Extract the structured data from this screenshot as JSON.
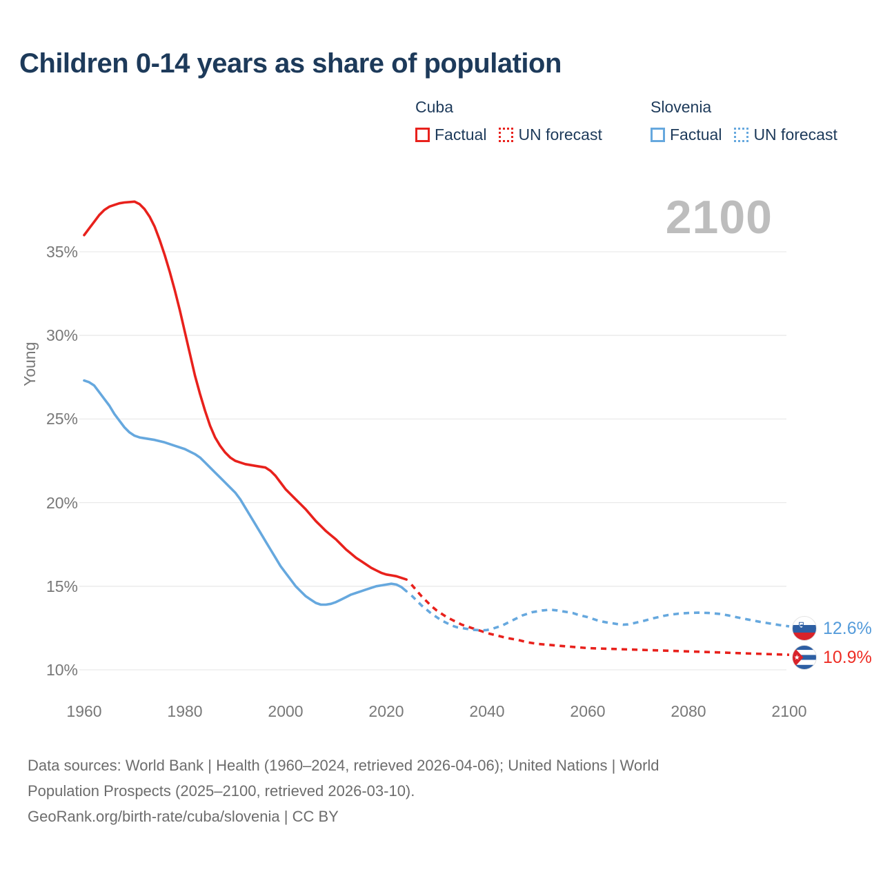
{
  "title": "Children 0-14 years as share of population",
  "colors": {
    "cuba": "#e8211c",
    "slovenia": "#66a8de",
    "cuba_label": "#ee2d24",
    "slovenia_label": "#549bda",
    "gridline": "#e9e9e9",
    "axis_text": "#787878",
    "watermark": "#bdbdbd",
    "title_text": "#1d3a5a"
  },
  "legend": {
    "groups": [
      {
        "country": "Cuba",
        "color": "#e8211c",
        "items": [
          {
            "label": "Factual",
            "style": "solid"
          },
          {
            "label": "UN forecast",
            "style": "dotted"
          }
        ]
      },
      {
        "country": "Slovenia",
        "color": "#66a8de",
        "items": [
          {
            "label": "Factual",
            "style": "solid"
          },
          {
            "label": "UN forecast",
            "style": "dotted"
          }
        ]
      }
    ]
  },
  "watermark": "2100",
  "end_labels": [
    {
      "country": "Slovenia",
      "value": "12.6%",
      "color": "#549bda"
    },
    {
      "country": "Cuba",
      "value": "10.9%",
      "color": "#ee2d24"
    }
  ],
  "footer": {
    "lines": [
      "Data sources: World Bank | Health (1960–2024, retrieved 2026-04-06); United Nations | World",
      "Population Prospects (2025–2100, retrieved 2026-03-10).",
      "GeoRank.org/birth-rate/cuba/slovenia | CC BY"
    ]
  },
  "chart_data": {
    "type": "line",
    "title": "Children 0-14 years as share of population",
    "xlabel": "",
    "ylabel": "Young",
    "xlim": [
      1960,
      2100
    ],
    "ylim": [
      10,
      38.5
    ],
    "grid": "horizontal-only",
    "legend_position": "top-right",
    "y_ticks": [
      {
        "v": 35,
        "label": "35%"
      },
      {
        "v": 30,
        "label": "30%"
      },
      {
        "v": 25,
        "label": "25%"
      },
      {
        "v": 20,
        "label": "20%"
      },
      {
        "v": 15,
        "label": "15%"
      },
      {
        "v": 10,
        "label": "10%"
      }
    ],
    "x_ticks": [
      {
        "v": 1960,
        "label": "1960"
      },
      {
        "v": 1980,
        "label": "1980"
      },
      {
        "v": 2000,
        "label": "2000"
      },
      {
        "v": 2020,
        "label": "2020"
      },
      {
        "v": 2040,
        "label": "2040"
      },
      {
        "v": 2060,
        "label": "2060"
      },
      {
        "v": 2080,
        "label": "2080"
      },
      {
        "v": 2100,
        "label": "2100"
      }
    ],
    "series": [
      {
        "name": "Cuba — Factual",
        "color": "#e8211c",
        "style": "solid",
        "points": [
          [
            1960,
            36.0
          ],
          [
            1961,
            36.4
          ],
          [
            1962,
            36.8
          ],
          [
            1963,
            37.2
          ],
          [
            1964,
            37.5
          ],
          [
            1965,
            37.7
          ],
          [
            1966,
            37.8
          ],
          [
            1967,
            37.9
          ],
          [
            1968,
            37.95
          ],
          [
            1970,
            38.0
          ],
          [
            1971,
            37.85
          ],
          [
            1972,
            37.55
          ],
          [
            1973,
            37.1
          ],
          [
            1974,
            36.5
          ],
          [
            1975,
            35.7
          ],
          [
            1976,
            34.8
          ],
          [
            1977,
            33.8
          ],
          [
            1978,
            32.7
          ],
          [
            1979,
            31.5
          ],
          [
            1980,
            30.2
          ],
          [
            1981,
            28.9
          ],
          [
            1982,
            27.6
          ],
          [
            1983,
            26.5
          ],
          [
            1984,
            25.5
          ],
          [
            1985,
            24.6
          ],
          [
            1986,
            23.9
          ],
          [
            1987,
            23.4
          ],
          [
            1988,
            23.0
          ],
          [
            1989,
            22.7
          ],
          [
            1990,
            22.5
          ],
          [
            1991,
            22.4
          ],
          [
            1992,
            22.3
          ],
          [
            1994,
            22.2
          ],
          [
            1996,
            22.1
          ],
          [
            1997,
            21.9
          ],
          [
            1998,
            21.6
          ],
          [
            1999,
            21.2
          ],
          [
            2000,
            20.8
          ],
          [
            2001,
            20.5
          ],
          [
            2002,
            20.2
          ],
          [
            2003,
            19.9
          ],
          [
            2004,
            19.6
          ],
          [
            2005,
            19.25
          ],
          [
            2006,
            18.9
          ],
          [
            2007,
            18.6
          ],
          [
            2008,
            18.3
          ],
          [
            2009,
            18.05
          ],
          [
            2010,
            17.8
          ],
          [
            2011,
            17.5
          ],
          [
            2012,
            17.2
          ],
          [
            2013,
            16.95
          ],
          [
            2014,
            16.7
          ],
          [
            2015,
            16.5
          ],
          [
            2016,
            16.3
          ],
          [
            2017,
            16.1
          ],
          [
            2018,
            15.95
          ],
          [
            2019,
            15.8
          ],
          [
            2020,
            15.7
          ],
          [
            2021,
            15.65
          ],
          [
            2022,
            15.6
          ],
          [
            2023,
            15.5
          ],
          [
            2024,
            15.4
          ]
        ]
      },
      {
        "name": "Cuba — UN forecast",
        "color": "#e8211c",
        "style": "dashed",
        "points": [
          [
            2025,
            15.1
          ],
          [
            2026,
            14.75
          ],
          [
            2027,
            14.4
          ],
          [
            2028,
            14.1
          ],
          [
            2029,
            13.8
          ],
          [
            2030,
            13.55
          ],
          [
            2031,
            13.35
          ],
          [
            2032,
            13.15
          ],
          [
            2033,
            13.0
          ],
          [
            2034,
            12.85
          ],
          [
            2035,
            12.7
          ],
          [
            2036,
            12.6
          ],
          [
            2037,
            12.5
          ],
          [
            2038,
            12.4
          ],
          [
            2039,
            12.3
          ],
          [
            2040,
            12.2
          ],
          [
            2042,
            12.05
          ],
          [
            2044,
            11.9
          ],
          [
            2046,
            11.8
          ],
          [
            2048,
            11.65
          ],
          [
            2050,
            11.55
          ],
          [
            2052,
            11.5
          ],
          [
            2054,
            11.45
          ],
          [
            2056,
            11.4
          ],
          [
            2058,
            11.35
          ],
          [
            2060,
            11.3
          ],
          [
            2065,
            11.25
          ],
          [
            2070,
            11.2
          ],
          [
            2075,
            11.15
          ],
          [
            2080,
            11.1
          ],
          [
            2085,
            11.05
          ],
          [
            2090,
            11.0
          ],
          [
            2095,
            10.95
          ],
          [
            2100,
            10.9
          ]
        ]
      },
      {
        "name": "Slovenia — Factual",
        "color": "#66a8de",
        "style": "solid",
        "points": [
          [
            1960,
            27.3
          ],
          [
            1961,
            27.2
          ],
          [
            1962,
            27.0
          ],
          [
            1963,
            26.6
          ],
          [
            1964,
            26.2
          ],
          [
            1965,
            25.8
          ],
          [
            1966,
            25.3
          ],
          [
            1967,
            24.9
          ],
          [
            1968,
            24.5
          ],
          [
            1969,
            24.2
          ],
          [
            1970,
            24.0
          ],
          [
            1971,
            23.9
          ],
          [
            1972,
            23.85
          ],
          [
            1974,
            23.75
          ],
          [
            1976,
            23.6
          ],
          [
            1978,
            23.4
          ],
          [
            1980,
            23.2
          ],
          [
            1982,
            22.9
          ],
          [
            1983,
            22.7
          ],
          [
            1984,
            22.4
          ],
          [
            1985,
            22.1
          ],
          [
            1986,
            21.8
          ],
          [
            1987,
            21.5
          ],
          [
            1988,
            21.2
          ],
          [
            1989,
            20.9
          ],
          [
            1990,
            20.6
          ],
          [
            1991,
            20.2
          ],
          [
            1992,
            19.7
          ],
          [
            1993,
            19.2
          ],
          [
            1994,
            18.7
          ],
          [
            1995,
            18.2
          ],
          [
            1996,
            17.7
          ],
          [
            1997,
            17.2
          ],
          [
            1998,
            16.7
          ],
          [
            1999,
            16.2
          ],
          [
            2000,
            15.8
          ],
          [
            2001,
            15.4
          ],
          [
            2002,
            15.0
          ],
          [
            2003,
            14.7
          ],
          [
            2004,
            14.4
          ],
          [
            2005,
            14.2
          ],
          [
            2006,
            14.0
          ],
          [
            2007,
            13.9
          ],
          [
            2008,
            13.9
          ],
          [
            2009,
            13.95
          ],
          [
            2010,
            14.05
          ],
          [
            2011,
            14.2
          ],
          [
            2012,
            14.35
          ],
          [
            2013,
            14.5
          ],
          [
            2014,
            14.6
          ],
          [
            2015,
            14.7
          ],
          [
            2016,
            14.8
          ],
          [
            2017,
            14.9
          ],
          [
            2018,
            15.0
          ],
          [
            2019,
            15.05
          ],
          [
            2020,
            15.1
          ],
          [
            2021,
            15.15
          ],
          [
            2022,
            15.1
          ],
          [
            2023,
            14.95
          ],
          [
            2024,
            14.7
          ]
        ]
      },
      {
        "name": "Slovenia — UN forecast",
        "color": "#66a8de",
        "style": "dashed",
        "points": [
          [
            2025,
            14.45
          ],
          [
            2026,
            14.15
          ],
          [
            2027,
            13.85
          ],
          [
            2028,
            13.6
          ],
          [
            2029,
            13.35
          ],
          [
            2030,
            13.15
          ],
          [
            2031,
            12.95
          ],
          [
            2032,
            12.8
          ],
          [
            2033,
            12.65
          ],
          [
            2034,
            12.55
          ],
          [
            2035,
            12.5
          ],
          [
            2036,
            12.45
          ],
          [
            2037,
            12.4
          ],
          [
            2038,
            12.38
          ],
          [
            2039,
            12.36
          ],
          [
            2040,
            12.38
          ],
          [
            2041,
            12.45
          ],
          [
            2042,
            12.55
          ],
          [
            2043,
            12.65
          ],
          [
            2044,
            12.8
          ],
          [
            2045,
            12.95
          ],
          [
            2046,
            13.1
          ],
          [
            2047,
            13.25
          ],
          [
            2048,
            13.35
          ],
          [
            2049,
            13.45
          ],
          [
            2050,
            13.5
          ],
          [
            2051,
            13.55
          ],
          [
            2052,
            13.58
          ],
          [
            2053,
            13.58
          ],
          [
            2054,
            13.55
          ],
          [
            2055,
            13.5
          ],
          [
            2056,
            13.45
          ],
          [
            2057,
            13.4
          ],
          [
            2058,
            13.3
          ],
          [
            2059,
            13.22
          ],
          [
            2060,
            13.15
          ],
          [
            2061,
            13.05
          ],
          [
            2062,
            12.95
          ],
          [
            2063,
            12.88
          ],
          [
            2064,
            12.82
          ],
          [
            2065,
            12.78
          ],
          [
            2066,
            12.73
          ],
          [
            2067,
            12.7
          ],
          [
            2068,
            12.72
          ],
          [
            2069,
            12.78
          ],
          [
            2070,
            12.85
          ],
          [
            2071,
            12.92
          ],
          [
            2072,
            13.0
          ],
          [
            2073,
            13.08
          ],
          [
            2074,
            13.15
          ],
          [
            2075,
            13.22
          ],
          [
            2076,
            13.28
          ],
          [
            2077,
            13.32
          ],
          [
            2078,
            13.36
          ],
          [
            2079,
            13.38
          ],
          [
            2080,
            13.4
          ],
          [
            2082,
            13.42
          ],
          [
            2084,
            13.4
          ],
          [
            2086,
            13.35
          ],
          [
            2088,
            13.25
          ],
          [
            2090,
            13.12
          ],
          [
            2092,
            13.0
          ],
          [
            2094,
            12.88
          ],
          [
            2096,
            12.78
          ],
          [
            2098,
            12.68
          ],
          [
            2100,
            12.6
          ]
        ]
      }
    ]
  }
}
